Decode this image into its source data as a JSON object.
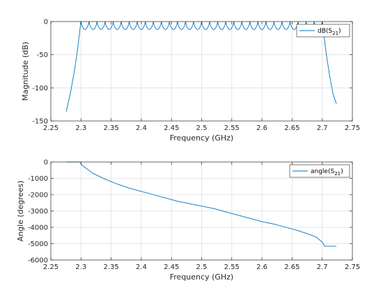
{
  "chart_data": [
    {
      "type": "line",
      "xlabel": "Frequency (GHz)",
      "ylabel": "Magnitude (dB)",
      "xlim": [
        2.25,
        2.75
      ],
      "ylim": [
        -150,
        0
      ],
      "xticks": [
        2.25,
        2.3,
        2.35,
        2.4,
        2.45,
        2.5,
        2.55,
        2.6,
        2.65,
        2.7,
        2.75
      ],
      "yticks": [
        -150,
        -100,
        -50,
        0
      ],
      "grid": true,
      "legend": "top-right",
      "series_color": "#0072BD",
      "series": [
        {
          "name_main": "dB(S",
          "name_sub": "21",
          "name_tail": ")",
          "x": [
            2.2755,
            2.282,
            2.288,
            2.292,
            2.295,
            2.2975,
            2.299,
            2.2998
          ],
          "y": [
            -136,
            -110,
            -80,
            -57,
            -37,
            -18,
            -6,
            0
          ],
          "passband": {
            "start": 2.3,
            "end": 2.7,
            "ripples": 30,
            "max_ripple_db": -12
          },
          "x_upper": [
            2.7002,
            2.701,
            2.7025,
            2.705,
            2.708,
            2.712,
            2.718,
            2.7235
          ],
          "y_upper": [
            0,
            -6,
            -18,
            -37,
            -57,
            -80,
            -110,
            -124
          ]
        }
      ]
    },
    {
      "type": "line",
      "xlabel": "Frequency (GHz)",
      "ylabel": "Angle (degrees)",
      "xlim": [
        2.25,
        2.75
      ],
      "ylim": [
        -6000,
        0
      ],
      "xticks": [
        2.25,
        2.3,
        2.35,
        2.4,
        2.45,
        2.5,
        2.55,
        2.6,
        2.65,
        2.7,
        2.75
      ],
      "yticks": [
        -6000,
        -5000,
        -4000,
        -3000,
        -2000,
        -1000,
        0
      ],
      "grid": true,
      "legend": "top-right",
      "series_color": "#0072BD",
      "series": [
        {
          "name_main": "angle(S",
          "name_sub": "21",
          "name_tail": ")",
          "x": [
            2.276,
            2.2995,
            2.3,
            2.32,
            2.34,
            2.36,
            2.38,
            2.4,
            2.42,
            2.44,
            2.46,
            2.48,
            2.5,
            2.52,
            2.54,
            2.56,
            2.58,
            2.6,
            2.62,
            2.64,
            2.66,
            2.68,
            2.69,
            2.7,
            2.704,
            2.7235
          ],
          "y": [
            0,
            0,
            -150,
            -700,
            -1050,
            -1350,
            -1600,
            -1800,
            -2000,
            -2200,
            -2400,
            -2550,
            -2700,
            -2850,
            -3050,
            -3250,
            -3450,
            -3650,
            -3800,
            -4000,
            -4200,
            -4450,
            -4600,
            -4900,
            -5150,
            -5150
          ]
        }
      ]
    }
  ]
}
